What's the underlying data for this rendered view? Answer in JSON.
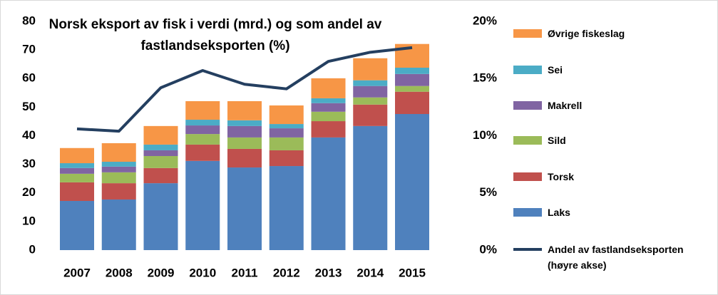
{
  "chart_data": {
    "type": "bar",
    "title": "Norsk eksport av fisk i verdi (mrd.) og som andel av fastlandseksporten (%)",
    "categories": [
      "2007",
      "2008",
      "2009",
      "2010",
      "2011",
      "2012",
      "2013",
      "2014",
      "2015"
    ],
    "stacked": true,
    "series": [
      {
        "name": "Laks",
        "color": "#4f81bd",
        "values": [
          17.2,
          17.7,
          23.4,
          31.2,
          28.9,
          29.4,
          39.4,
          43.4,
          47.6
        ]
      },
      {
        "name": "Torsk",
        "color": "#c0504d",
        "values": [
          6.5,
          5.7,
          5.3,
          5.7,
          6.5,
          5.5,
          5.7,
          7.5,
          7.8
        ]
      },
      {
        "name": "Sild",
        "color": "#9bbb59",
        "values": [
          3,
          3.8,
          4.2,
          3.7,
          4,
          4.5,
          3.3,
          2.5,
          2
        ]
      },
      {
        "name": "Makrell",
        "color": "#8064a2",
        "values": [
          2,
          2,
          2,
          3,
          4,
          3.2,
          3,
          4,
          4.2
        ]
      },
      {
        "name": "Sei",
        "color": "#4bacc6",
        "values": [
          1.7,
          1.7,
          2,
          2,
          2,
          1.5,
          1.7,
          2,
          2.2
        ]
      },
      {
        "name": "Øvrige fiskeslag",
        "color": "#f79646",
        "values": [
          5.3,
          6.5,
          6.5,
          6.5,
          6.7,
          6.5,
          7,
          7.7,
          8.3
        ]
      },
      {
        "name": "Andel av fastlandseksporten (høyre akse)",
        "color": "#243f60",
        "type": "line",
        "axis": "y2",
        "values": [
          10.6,
          10.4,
          14.2,
          15.7,
          14.5,
          14.1,
          16.5,
          17.3,
          17.7
        ]
      }
    ],
    "ylim": [
      0,
      80
    ],
    "yticks": [
      0,
      10,
      20,
      30,
      40,
      50,
      60,
      70,
      80
    ],
    "y2lim": [
      0,
      20
    ],
    "y2ticks": [
      {
        "value": 0,
        "label": "0%"
      },
      {
        "value": 5,
        "label": "5%"
      },
      {
        "value": 10,
        "label": "10%"
      },
      {
        "value": 15,
        "label": "15%"
      },
      {
        "value": 20,
        "label": "20%"
      }
    ],
    "grid": false,
    "legend": "right"
  }
}
